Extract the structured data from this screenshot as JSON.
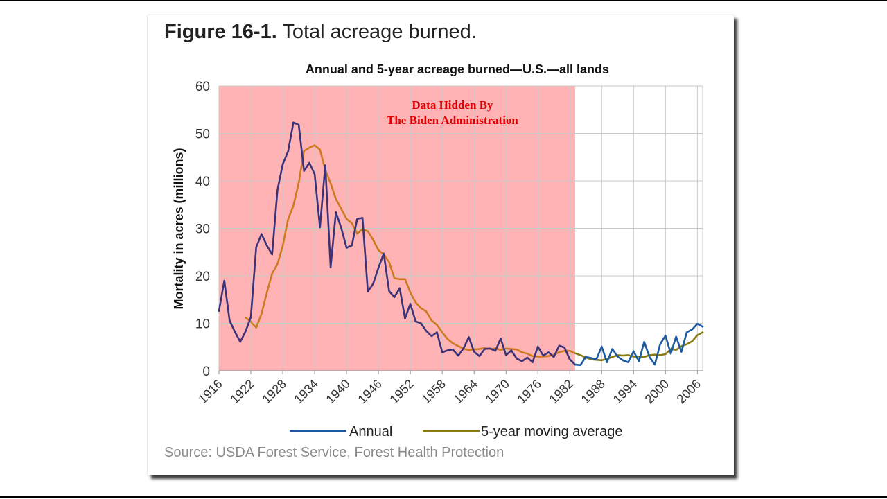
{
  "figure": {
    "number": "Figure 16-1.",
    "caption": "Total acreage burned."
  },
  "source": "Source: USDA Forest Service, Forest Health Protection",
  "overlay": {
    "line1": "Data Hidden By",
    "line2": "The Biden Administration",
    "x_start": 1916,
    "x_end": 1983,
    "color": "#ffb3b5",
    "text_color": "#e00000"
  },
  "chart_data": {
    "type": "line",
    "title": "Annual and 5-year acreage burned—U.S.—all lands",
    "xlabel": "",
    "ylabel": "Mortality in acres (millions)",
    "xlim": [
      1916,
      2007
    ],
    "ylim": [
      0,
      60
    ],
    "yticks": [
      0,
      10,
      20,
      30,
      40,
      50,
      60
    ],
    "xticks": [
      1916,
      1922,
      1928,
      1934,
      1940,
      1946,
      1952,
      1958,
      1964,
      1970,
      1976,
      1982,
      1988,
      1994,
      2000,
      2006
    ],
    "grid": true,
    "legend_position": "bottom",
    "colors": {
      "annual_pre": "#3b3278",
      "annual": "#1c59a0",
      "average": "#8a7a12",
      "average_pre": "#cd7a1f",
      "grid": "#c8c8c8"
    },
    "series": [
      {
        "name": "Annual",
        "x": [
          1916,
          1917,
          1918,
          1919,
          1920,
          1921,
          1922,
          1923,
          1924,
          1925,
          1926,
          1927,
          1928,
          1929,
          1930,
          1931,
          1932,
          1933,
          1934,
          1935,
          1936,
          1937,
          1938,
          1939,
          1940,
          1941,
          1942,
          1943,
          1944,
          1945,
          1946,
          1947,
          1948,
          1949,
          1950,
          1951,
          1952,
          1953,
          1954,
          1955,
          1956,
          1957,
          1958,
          1959,
          1960,
          1961,
          1962,
          1963,
          1964,
          1965,
          1966,
          1967,
          1968,
          1969,
          1970,
          1971,
          1972,
          1973,
          1974,
          1975,
          1976,
          1977,
          1978,
          1979,
          1980,
          1981,
          1982,
          1983,
          1984,
          1985,
          1986,
          1987,
          1988,
          1989,
          1990,
          1991,
          1992,
          1993,
          1994,
          1995,
          1996,
          1997,
          1998,
          1999,
          2000,
          2001,
          2002,
          2003,
          2004,
          2005,
          2006,
          2007
        ],
        "values": [
          12.6,
          19,
          10.6,
          8.2,
          6.1,
          8.3,
          11.3,
          26,
          28.8,
          26.4,
          24.5,
          38.1,
          43.5,
          46.2,
          52.3,
          51.8,
          42.1,
          43.8,
          41.4,
          30.2,
          43.3,
          21.8,
          33.4,
          30.1,
          25.9,
          26.4,
          32,
          32.2,
          16.7,
          18.3,
          21.7,
          24.7,
          16.8,
          15.5,
          17.4,
          11,
          14.1,
          10.4,
          10,
          8.4,
          7.3,
          8.1,
          3.9,
          4.3,
          4.5,
          3.2,
          4.7,
          7.1,
          4,
          3.1,
          4.6,
          4.7,
          4.2,
          6.8,
          3.3,
          4.3,
          2.6,
          2,
          2.8,
          1.8,
          5.1,
          3.2,
          3.9,
          2.9,
          5.3,
          4.9,
          2.4,
          1.3,
          1.2,
          2.9,
          2.7,
          2.4,
          5.1,
          1.8,
          4.6,
          3,
          2.2,
          1.8,
          4.1,
          2,
          6.1,
          2.9,
          1.3,
          5.6,
          7.4,
          3.6,
          7.2,
          4,
          8.1,
          8.7,
          9.9,
          9.3
        ]
      },
      {
        "name": "5-year moving average",
        "x": [
          1921,
          1922,
          1923,
          1924,
          1925,
          1926,
          1927,
          1928,
          1929,
          1930,
          1931,
          1932,
          1933,
          1934,
          1935,
          1936,
          1937,
          1938,
          1939,
          1940,
          1941,
          1942,
          1943,
          1944,
          1945,
          1946,
          1947,
          1948,
          1949,
          1950,
          1951,
          1952,
          1953,
          1954,
          1955,
          1956,
          1957,
          1958,
          1959,
          1960,
          1961,
          1962,
          1963,
          1964,
          1965,
          1966,
          1967,
          1968,
          1969,
          1970,
          1971,
          1972,
          1973,
          1974,
          1975,
          1976,
          1977,
          1978,
          1979,
          1980,
          1981,
          1982,
          1983,
          1984,
          1985,
          1986,
          1987,
          1988,
          1989,
          1990,
          1991,
          1992,
          1993,
          1994,
          1995,
          1996,
          1997,
          1998,
          1999,
          2000,
          2001,
          2002,
          2003,
          2004,
          2005,
          2006,
          2007
        ],
        "values": [
          11.2,
          10.3,
          9.1,
          12,
          16.4,
          20.5,
          22.5,
          26.3,
          31.9,
          34.8,
          39.6,
          46.3,
          47,
          47.5,
          46.6,
          42.3,
          39.5,
          36.2,
          34.1,
          32,
          31.1,
          28.9,
          29.8,
          29.4,
          27.6,
          25.4,
          24.5,
          22.9,
          19.5,
          19.3,
          19.3,
          16.5,
          14.4,
          13.2,
          12.5,
          10.6,
          9.7,
          8.1,
          6.7,
          5.8,
          5.2,
          4.7,
          4.3,
          4.5,
          4.6,
          4.8,
          4.6,
          4.7,
          4.4,
          4.7,
          4.6,
          4.5,
          3.9,
          3.6,
          3.1,
          3,
          3,
          3.1,
          3.4,
          3.9,
          4.2,
          4.2,
          3.7,
          3.3,
          2.8,
          2.4,
          2.3,
          2.2,
          2.5,
          2.9,
          3.3,
          3.2,
          3.3,
          3,
          3,
          2.9,
          3.3,
          3.4,
          3.3,
          3.5,
          4.6,
          4.4,
          5.2,
          5.6,
          6.2,
          7.5,
          8.1
        ]
      }
    ]
  }
}
